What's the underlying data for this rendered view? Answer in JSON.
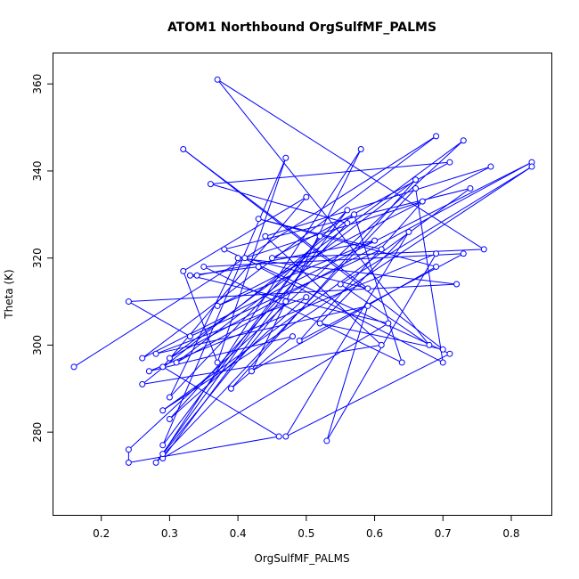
{
  "chart_data": {
    "type": "line",
    "title": "ATOM1 Northbound OrgSulfMF_PALMS",
    "xlabel": "OrgSulfMF_PALMS",
    "ylabel": "Theta (K)",
    "xlim": [
      0.13,
      0.86
    ],
    "ylim": [
      261,
      367
    ],
    "xticks": [
      "0.2",
      "0.3",
      "0.4",
      "0.5",
      "0.6",
      "0.7",
      "0.8"
    ],
    "yticks": [
      "280",
      "300",
      "320",
      "340",
      "360"
    ],
    "line_color": "#0000ff",
    "marker": "open-circle",
    "series": [
      {
        "x": [
          0.16,
          0.69,
          0.26,
          0.83,
          0.3,
          0.73,
          0.24,
          0.24,
          0.46,
          0.29,
          0.5,
          0.32,
          0.37,
          0.47,
          0.29,
          0.52,
          0.28,
          0.66,
          0.7,
          0.43,
          0.33,
          0.62,
          0.29,
          0.56,
          0.3,
          0.4,
          0.72,
          0.24,
          0.33,
          0.61,
          0.43,
          0.69,
          0.42,
          0.58,
          0.29,
          0.47,
          0.31,
          0.66,
          0.39,
          0.48,
          0.27,
          0.69,
          0.53,
          0.59,
          0.28,
          0.5,
          0.3,
          0.56,
          0.36,
          0.71,
          0.45,
          0.76,
          0.37,
          0.68,
          0.55,
          0.83,
          0.29,
          0.74,
          0.38,
          0.71,
          0.47,
          0.65,
          0.52,
          0.7,
          0.32,
          0.59,
          0.41,
          0.67,
          0.49,
          0.73,
          0.35,
          0.64,
          0.57,
          0.26,
          0.61,
          0.44,
          0.77,
          0.37,
          0.6,
          0.34
        ],
        "y": [
          295,
          348,
          297,
          342,
          297,
          347,
          276,
          273,
          279,
          295,
          334,
          317,
          296,
          343,
          277,
          325,
          273,
          336,
          296,
          318,
          316,
          305,
          274,
          331,
          288,
          320,
          314,
          310,
          302,
          322,
          329,
          318,
          294,
          345,
          275,
          310,
          296,
          338,
          290,
          302,
          294,
          321,
          278,
          309,
          298,
          311,
          283,
          328,
          337,
          342,
          320,
          322,
          361,
          300,
          314,
          341,
          285,
          336,
          322,
          298,
          279,
          326,
          305,
          299,
          345,
          313,
          320,
          333,
          301,
          321,
          318,
          296,
          330,
          291,
          300,
          325,
          341,
          309,
          324,
          316
        ]
      }
    ]
  }
}
